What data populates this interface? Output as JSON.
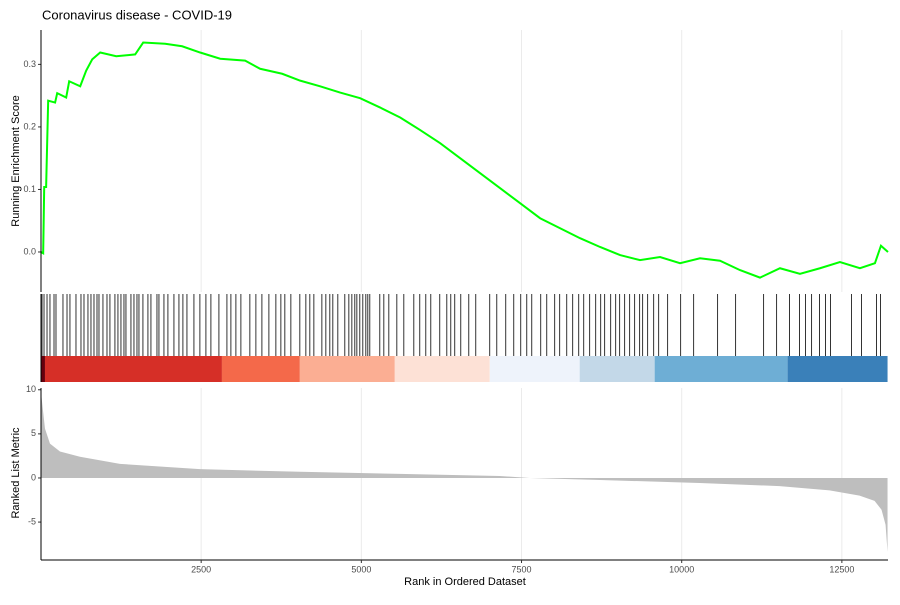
{
  "chart_data": [
    {
      "type": "line",
      "title": "Coronavirus disease - COVID-19",
      "ylabel": "Running Enrichment Score",
      "xlim": [
        0,
        13220
      ],
      "ylim": [
        -0.064,
        0.355
      ],
      "yticks": [
        {
          "value": 0,
          "label": "0.0"
        },
        {
          "value": 0.1,
          "label": "0.1"
        },
        {
          "value": 0.2,
          "label": "0.2"
        },
        {
          "value": 0.3,
          "label": "0.3"
        }
      ],
      "color": "#00ff00",
      "grid": true,
      "x": [
        0,
        34,
        50,
        80,
        112,
        220,
        253,
        393,
        440,
        612,
        705,
        799,
        924,
        1174,
        1470,
        1595,
        1938,
        2203,
        2484,
        2797,
        3186,
        3420,
        3764,
        4045,
        4357,
        4669,
        4981,
        5294,
        5606,
        5918,
        6230,
        6542,
        6854,
        7166,
        7478,
        7790,
        8102,
        8414,
        8726,
        9038,
        9350,
        9662,
        9974,
        10286,
        10598,
        10910,
        11222,
        11534,
        11846,
        12158,
        12470,
        12782,
        13016,
        13110,
        13220
      ],
      "values": [
        0.0,
        -0.002,
        0.104,
        0.104,
        0.242,
        0.239,
        0.254,
        0.247,
        0.273,
        0.265,
        0.29,
        0.308,
        0.319,
        0.313,
        0.316,
        0.335,
        0.333,
        0.329,
        0.319,
        0.309,
        0.306,
        0.293,
        0.285,
        0.274,
        0.265,
        0.255,
        0.246,
        0.231,
        0.215,
        0.195,
        0.174,
        0.15,
        0.126,
        0.102,
        0.078,
        0.054,
        0.038,
        0.022,
        0.008,
        -0.005,
        -0.013,
        -0.008,
        -0.018,
        -0.01,
        -0.014,
        -0.029,
        -0.041,
        -0.026,
        -0.035,
        -0.026,
        -0.016,
        -0.026,
        -0.018,
        0.01,
        0.0
      ]
    },
    {
      "type": "rug",
      "xlim": [
        0,
        13220
      ],
      "hits": [
        16,
        47,
        94,
        140,
        203,
        234,
        343,
        406,
        452,
        546,
        624,
        671,
        733,
        780,
        827,
        874,
        905,
        967,
        1030,
        1076,
        1154,
        1201,
        1248,
        1295,
        1326,
        1404,
        1451,
        1498,
        1529,
        1591,
        1669,
        1716,
        1810,
        1841,
        1919,
        1981,
        2075,
        2153,
        2215,
        2278,
        2387,
        2480,
        2574,
        2652,
        2777,
        2902,
        2964,
        3042,
        3120,
        3260,
        3354,
        3448,
        3557,
        3666,
        3744,
        3806,
        3900,
        4040,
        4134,
        4196,
        4259,
        4384,
        4446,
        4508,
        4555,
        4633,
        4742,
        4805,
        4852,
        4898,
        4930,
        4976,
        5023,
        5070,
        5101,
        5132,
        5288,
        5351,
        5429,
        5554,
        5663,
        5819,
        5912,
        6006,
        6084,
        6224,
        6334,
        6396,
        6458,
        6552,
        6677,
        6786,
        7004,
        7114,
        7254,
        7379,
        7488,
        7582,
        7660,
        7800,
        7894,
        8018,
        8096,
        8206,
        8299,
        8393,
        8471,
        8564,
        8658,
        8736,
        8798,
        8892,
        8970,
        9032,
        9110,
        9188,
        9266,
        9344,
        9391,
        9469,
        9563,
        9641,
        9781,
        9984,
        10187,
        10561,
        10842,
        11279,
        11482,
        11684,
        11840,
        11934,
        12028,
        12152,
        12246,
        12324,
        12652,
        12808,
        13042,
        13104
      ],
      "bands": [
        {
          "start": 0,
          "end": 62,
          "color": "#67000d"
        },
        {
          "start": 62,
          "end": 2824,
          "color": "#d62f27"
        },
        {
          "start": 2824,
          "end": 4040,
          "color": "#f4694a"
        },
        {
          "start": 4040,
          "end": 5522,
          "color": "#fbae93"
        },
        {
          "start": 5522,
          "end": 7004,
          "color": "#fde1d6"
        },
        {
          "start": 7004,
          "end": 8408,
          "color": "#eef3fb"
        },
        {
          "start": 8408,
          "end": 9578,
          "color": "#c3d8e8"
        },
        {
          "start": 9578,
          "end": 11653,
          "color": "#6eaed5"
        },
        {
          "start": 11653,
          "end": 13213,
          "color": "#3a80b9"
        }
      ]
    },
    {
      "type": "area",
      "ylabel": "Ranked List Metric",
      "xlabel": "Rank in Ordered Dataset",
      "xlim": [
        0,
        13220
      ],
      "ylim": [
        -9.3,
        10.2
      ],
      "xticks": [
        2500,
        5000,
        7500,
        10000,
        12500
      ],
      "yticks": [
        -5,
        0,
        5,
        10
      ],
      "color": "#bebebe",
      "grid": true,
      "x": [
        0,
        62,
        140,
        296,
        608,
        1232,
        2480,
        4040,
        5600,
        7160,
        7628,
        8720,
        10280,
        11528,
        12308,
        12776,
        13010,
        13119,
        13182,
        13213
      ],
      "values": [
        9.7,
        5.6,
        3.9,
        3.0,
        2.4,
        1.6,
        1.0,
        0.7,
        0.46,
        0.23,
        0,
        -0.23,
        -0.57,
        -0.92,
        -1.4,
        -2.0,
        -2.6,
        -3.6,
        -5.3,
        -8.4
      ]
    }
  ]
}
